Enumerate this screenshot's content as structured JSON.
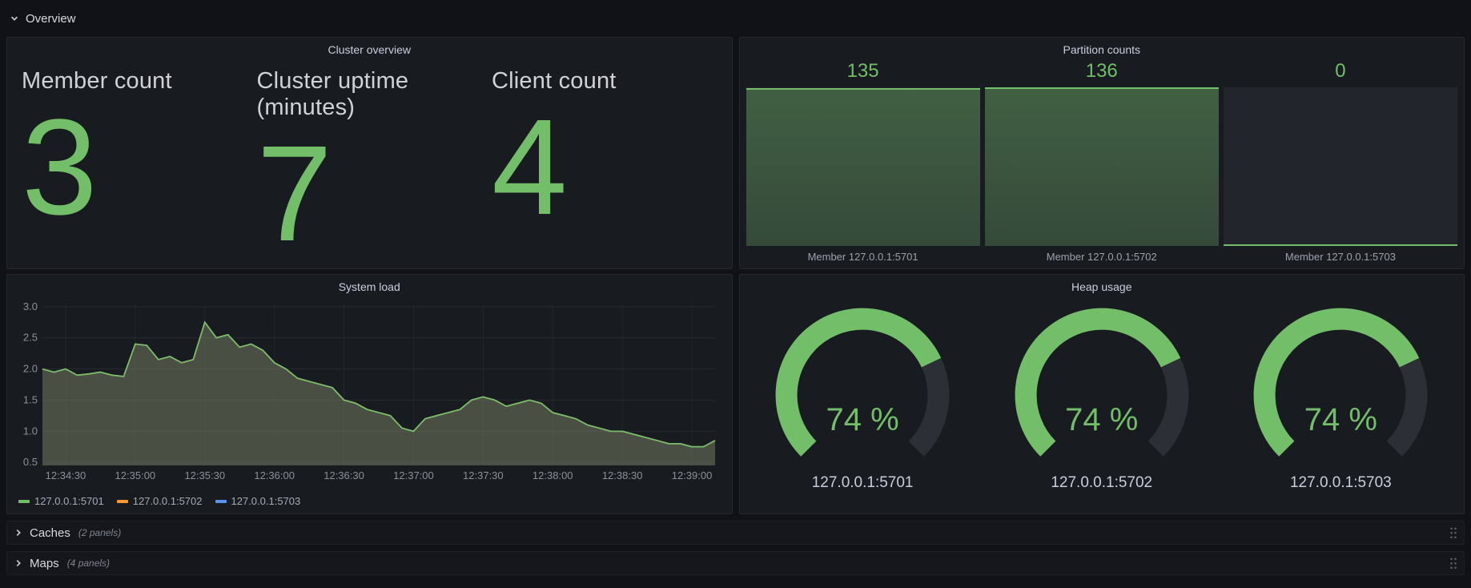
{
  "rows": {
    "overview": {
      "title": "Overview"
    },
    "caches": {
      "title": "Caches",
      "note": "(2 panels)"
    },
    "maps": {
      "title": "Maps",
      "note": "(4 panels)"
    }
  },
  "panels": {
    "cluster_overview": {
      "title": "Cluster overview",
      "stats": [
        {
          "label": "Member count",
          "value": "3"
        },
        {
          "label": "Cluster uptime (minutes)",
          "value": "7"
        },
        {
          "label": "Client count",
          "value": "4"
        }
      ]
    },
    "partition_counts": {
      "title": "Partition counts"
    },
    "system_load": {
      "title": "System load"
    },
    "heap_usage": {
      "title": "Heap usage"
    }
  },
  "colors": {
    "green": "#73bf69",
    "orange": "#ff9830",
    "blue": "#5794f2",
    "gauge_track": "#2c2f36"
  },
  "chart_data": [
    {
      "type": "area",
      "title": "System load",
      "xlabel": "",
      "ylabel": "",
      "grid": true,
      "legend_position": "bottom-left",
      "ylim": [
        0.45,
        3.05
      ],
      "y_ticks": [
        0.5,
        1.0,
        1.5,
        2.0,
        2.5,
        3.0
      ],
      "x_ticks": [
        "12:34:30",
        "12:35:00",
        "12:35:30",
        "12:36:00",
        "12:36:30",
        "12:37:00",
        "12:37:30",
        "12:38:00",
        "12:38:30",
        "12:39:00"
      ],
      "x_tick_indices": [
        2,
        8,
        14,
        20,
        26,
        32,
        38,
        44,
        50,
        56
      ],
      "series": [
        {
          "name": "127.0.0.1:5701",
          "color": "#73bf69",
          "values": [
            2.0,
            1.95,
            2.0,
            1.9,
            1.92,
            1.95,
            1.9,
            1.88,
            2.4,
            2.38,
            2.15,
            2.2,
            2.1,
            2.15,
            2.75,
            2.5,
            2.55,
            2.35,
            2.4,
            2.3,
            2.1,
            2.0,
            1.85,
            1.8,
            1.75,
            1.7,
            1.5,
            1.45,
            1.35,
            1.3,
            1.25,
            1.05,
            1.0,
            1.2,
            1.25,
            1.3,
            1.35,
            1.5,
            1.55,
            1.5,
            1.4,
            1.45,
            1.5,
            1.45,
            1.3,
            1.25,
            1.2,
            1.1,
            1.05,
            1.0,
            1.0,
            0.95,
            0.9,
            0.85,
            0.8,
            0.8,
            0.75,
            0.75,
            0.85
          ]
        },
        {
          "name": "127.0.0.1:5702",
          "color": "#ff9830",
          "values": [
            2.0,
            1.95,
            2.0,
            1.9,
            1.92,
            1.95,
            1.9,
            1.88,
            2.4,
            2.38,
            2.15,
            2.2,
            2.1,
            2.15,
            2.75,
            2.5,
            2.55,
            2.35,
            2.4,
            2.3,
            2.1,
            2.0,
            1.85,
            1.8,
            1.75,
            1.7,
            1.5,
            1.45,
            1.35,
            1.3,
            1.25,
            1.05,
            1.0,
            1.2,
            1.25,
            1.3,
            1.35,
            1.5,
            1.55,
            1.5,
            1.4,
            1.45,
            1.5,
            1.45,
            1.3,
            1.25,
            1.2,
            1.1,
            1.05,
            1.0,
            1.0,
            0.95,
            0.9,
            0.85,
            0.8,
            0.8,
            0.75,
            0.75,
            0.85
          ]
        },
        {
          "name": "127.0.0.1:5703",
          "color": "#5794f2",
          "values": [
            2.0,
            1.95,
            2.0,
            1.9,
            1.92,
            1.95,
            1.9,
            1.88,
            2.4,
            2.38,
            2.15,
            2.2,
            2.1,
            2.15,
            2.75,
            2.5,
            2.55,
            2.35,
            2.4,
            2.3,
            2.1,
            2.0,
            1.85,
            1.8,
            1.75,
            1.7,
            1.5,
            1.45,
            1.35,
            1.3,
            1.25,
            1.05,
            1.0,
            1.2,
            1.25,
            1.3,
            1.35,
            1.5,
            1.55,
            1.5,
            1.4,
            1.45,
            1.5,
            1.45,
            1.3,
            1.25,
            1.2,
            1.1,
            1.05,
            1.0,
            1.0,
            0.95,
            0.9,
            0.85,
            0.8,
            0.8,
            0.75,
            0.75,
            0.85
          ]
        }
      ]
    },
    {
      "type": "bar",
      "title": "Partition counts",
      "categories": [
        "Member 127.0.0.1:5701",
        "Member 127.0.0.1:5702",
        "Member 127.0.0.1:5703"
      ],
      "values": [
        135,
        136,
        0
      ],
      "display": [
        "135",
        "136",
        "0"
      ],
      "max": 136
    },
    {
      "type": "gauge",
      "title": "Heap usage",
      "unit": "%",
      "min": 0,
      "max": 100,
      "categories": [
        "127.0.0.1:5701",
        "127.0.0.1:5702",
        "127.0.0.1:5703"
      ],
      "values": [
        74,
        74,
        74
      ],
      "display": [
        "74 %",
        "74 %",
        "74 %"
      ]
    }
  ]
}
